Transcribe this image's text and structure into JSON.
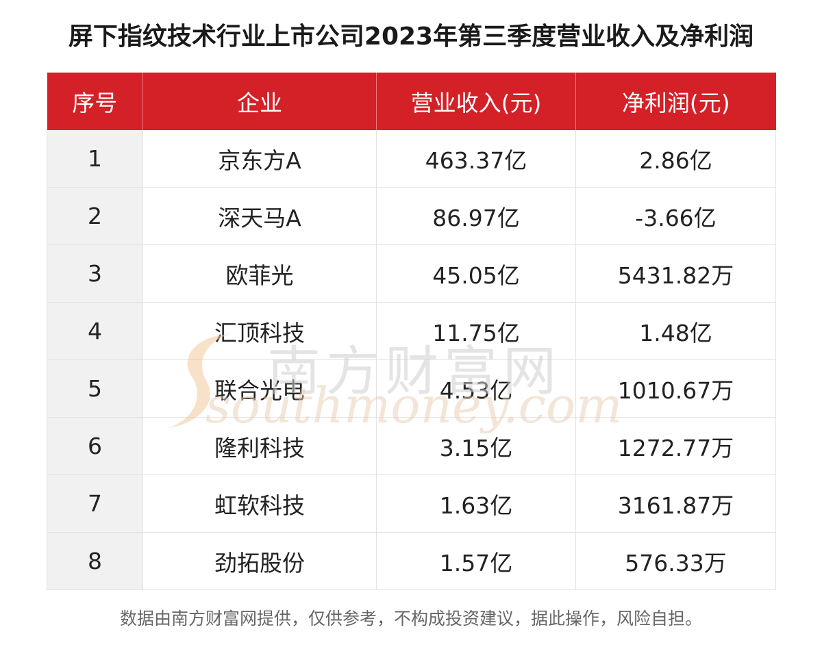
{
  "title": "屏下指纹技术行业上市公司2023年第三季度营业收入及净利润",
  "footnote": "数据由南方财富网提供，仅供参考，不构成投资建议，据此操作，风险自担。",
  "watermark": {
    "cn": "南方财富网",
    "en": "southmoney.com"
  },
  "colors": {
    "header_bg": "#d42027",
    "header_text": "#ffffff",
    "index_col_bg": "#f1f1f1"
  },
  "chart_data": {
    "type": "table",
    "title": "屏下指纹技术行业上市公司2023年第三季度营业收入及净利润",
    "columns": [
      "序号",
      "企业",
      "营业收入(元)",
      "净利润(元)"
    ],
    "rows": [
      [
        "1",
        "京东方A",
        "463.37亿",
        "2.86亿"
      ],
      [
        "2",
        "深天马A",
        "86.97亿",
        "-3.66亿"
      ],
      [
        "3",
        "欧菲光",
        "45.05亿",
        "5431.82万"
      ],
      [
        "4",
        "汇顶科技",
        "11.75亿",
        "1.48亿"
      ],
      [
        "5",
        "联合光电",
        "4.53亿",
        "1010.67万"
      ],
      [
        "6",
        "隆利科技",
        "3.15亿",
        "1272.77万"
      ],
      [
        "7",
        "虹软科技",
        "1.63亿",
        "3161.87万"
      ],
      [
        "8",
        "劲拓股份",
        "1.57亿",
        "576.33万"
      ]
    ]
  }
}
